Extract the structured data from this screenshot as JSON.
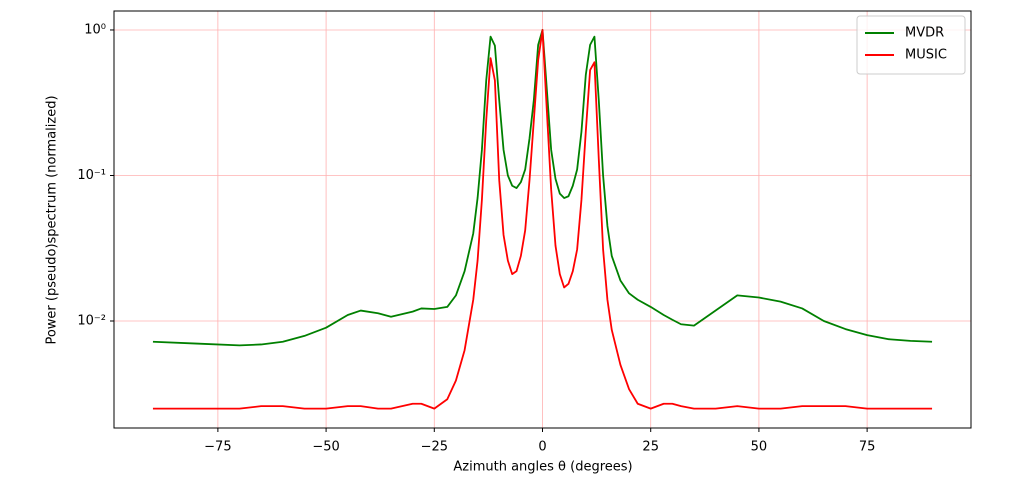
{
  "chart_data": {
    "type": "line",
    "xlabel": "Azimuth angles θ (degrees)",
    "ylabel": "Power (pseudo)spectrum (normalized)",
    "yscale": "log",
    "grid": true,
    "grid_color": "#ffb0b0",
    "legend": "upper right",
    "x": [
      -90,
      -80,
      -70,
      -65,
      -60,
      -55,
      -50,
      -45,
      -42,
      -38,
      -35,
      -30,
      -28,
      -25,
      -22,
      -20,
      -18,
      -16,
      -15,
      -14,
      -13,
      -12,
      -11,
      -10,
      -9,
      -8,
      -7,
      -6,
      -5,
      -4,
      -3,
      -2,
      -1,
      0,
      1,
      2,
      3,
      4,
      5,
      6,
      7,
      8,
      9,
      10,
      11,
      12,
      13,
      14,
      15,
      16,
      18,
      20,
      22,
      25,
      28,
      30,
      32,
      35,
      40,
      45,
      50,
      55,
      60,
      65,
      70,
      75,
      80,
      85,
      90
    ],
    "series": [
      {
        "name": "MVDR",
        "color": "#008000",
        "values": [
          0.0072,
          0.007,
          0.0068,
          0.0069,
          0.0072,
          0.0079,
          0.009,
          0.011,
          0.0118,
          0.0113,
          0.0107,
          0.0116,
          0.0122,
          0.0121,
          0.0125,
          0.015,
          0.022,
          0.04,
          0.07,
          0.15,
          0.45,
          0.9,
          0.78,
          0.33,
          0.15,
          0.1,
          0.085,
          0.082,
          0.09,
          0.11,
          0.18,
          0.33,
          0.79,
          1.0,
          0.39,
          0.15,
          0.095,
          0.075,
          0.07,
          0.072,
          0.085,
          0.11,
          0.2,
          0.49,
          0.79,
          0.9,
          0.33,
          0.1,
          0.045,
          0.028,
          0.019,
          0.0155,
          0.014,
          0.0125,
          0.011,
          0.0102,
          0.0095,
          0.0093,
          0.0118,
          0.015,
          0.0145,
          0.0136,
          0.0122,
          0.01,
          0.0088,
          0.008,
          0.0075,
          0.0073,
          0.0072
        ]
      },
      {
        "name": "MUSIC",
        "color": "#ff0000",
        "values": [
          0.0025,
          0.0025,
          0.0025,
          0.0026,
          0.0026,
          0.0025,
          0.0025,
          0.0026,
          0.0026,
          0.0025,
          0.0025,
          0.0027,
          0.0027,
          0.0025,
          0.0029,
          0.0039,
          0.0063,
          0.014,
          0.026,
          0.068,
          0.24,
          0.64,
          0.45,
          0.093,
          0.039,
          0.026,
          0.021,
          0.022,
          0.028,
          0.042,
          0.093,
          0.24,
          0.62,
          1.0,
          0.28,
          0.08,
          0.033,
          0.021,
          0.017,
          0.018,
          0.022,
          0.031,
          0.068,
          0.2,
          0.53,
          0.6,
          0.13,
          0.031,
          0.014,
          0.0087,
          0.005,
          0.0034,
          0.0027,
          0.0025,
          0.0027,
          0.0027,
          0.0026,
          0.0025,
          0.0025,
          0.0026,
          0.0025,
          0.0025,
          0.0026,
          0.0026,
          0.0026,
          0.0025,
          0.0025,
          0.0025,
          0.0025
        ]
      }
    ],
    "xlim": [
      -99,
      99
    ],
    "xticks": [
      {
        "value": -75,
        "label": "−75"
      },
      {
        "value": -50,
        "label": "−50"
      },
      {
        "value": -25,
        "label": "−25"
      },
      0,
      25,
      50,
      75
    ],
    "ylim": [
      0.00184,
      1.35
    ],
    "yticks": [
      {
        "value": 0.01,
        "label": "10⁻²"
      },
      {
        "value": 0.1,
        "label": "10⁻¹"
      },
      {
        "value": 1,
        "label": "10⁰"
      }
    ]
  }
}
